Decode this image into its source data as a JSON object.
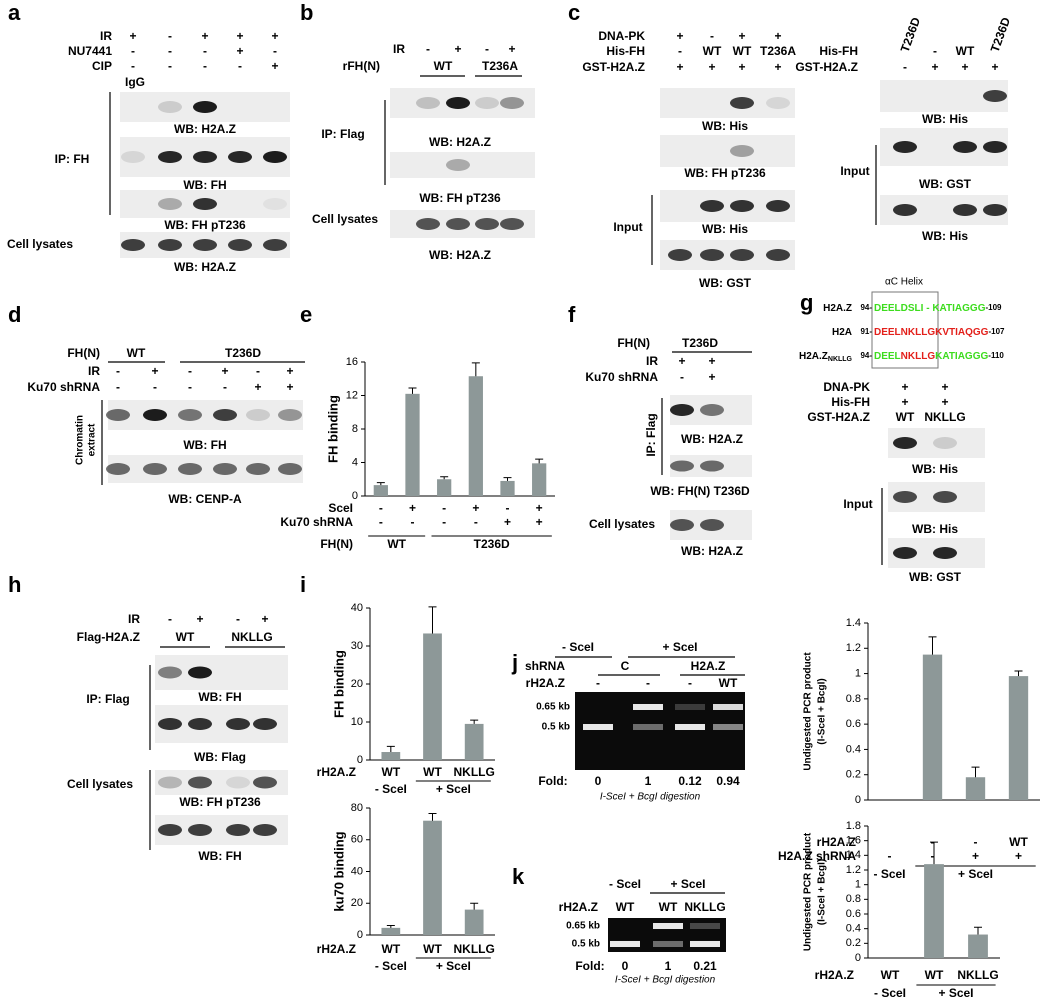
{
  "panels": {
    "a": {
      "letter": "a",
      "rows": [
        {
          "label": "IR",
          "marks": [
            "+",
            "-",
            "+",
            "+",
            "+"
          ]
        },
        {
          "label": "NU7441",
          "marks": [
            "-",
            "-",
            "-",
            "+",
            "-"
          ]
        },
        {
          "label": "CIP",
          "marks": [
            "-",
            "-",
            "-",
            "-",
            "+"
          ]
        }
      ],
      "lane_label": "IgG",
      "blots": [
        "WB: H2A.Z",
        "WB: FH",
        "WB: FH pT236",
        "WB: H2A.Z"
      ],
      "sections": [
        "IP: FH",
        "Cell lysates"
      ]
    },
    "b": {
      "letter": "b",
      "rows": [
        {
          "label": "IR",
          "marks": [
            "-",
            "+",
            "-",
            "+"
          ]
        },
        {
          "label": "rFH(N)",
          "marks": [
            "WT",
            "T236A"
          ]
        }
      ],
      "blots": [
        "WB: H2A.Z",
        "WB: FH pT236",
        "WB: H2A.Z"
      ],
      "sections": [
        "IP: Flag",
        "Cell lysates"
      ]
    },
    "c": {
      "letter": "c",
      "rows": [
        {
          "label": "DNA-PK",
          "marks": [
            "+",
            "-",
            "+",
            "+"
          ]
        },
        {
          "label": "His-FH",
          "marks": [
            "-",
            "WT",
            "WT",
            "T236A"
          ]
        },
        {
          "label": "GST-H2A.Z",
          "marks": [
            "+",
            "+",
            "+",
            "+"
          ]
        }
      ],
      "blots": [
        "WB: His",
        "WB: FH pT236",
        "WB: His",
        "WB: GST"
      ],
      "sections": [
        "Input"
      ],
      "right": {
        "rows": [
          {
            "label": "His-FH",
            "marks": [
              "T236D",
              "-",
              "WT",
              "T236D"
            ]
          },
          {
            "label": "GST-H2A.Z",
            "marks": [
              "-",
              "+",
              "+",
              "+"
            ]
          }
        ],
        "blots": [
          "WB: His",
          "WB: GST",
          "WB: His"
        ],
        "sections": [
          "Input"
        ]
      }
    },
    "d": {
      "letter": "d",
      "rows": [
        {
          "label": "FH(N)",
          "marks": [
            "WT",
            "T236D"
          ]
        },
        {
          "label": "IR",
          "marks": [
            "-",
            "+",
            "-",
            "+",
            "-",
            "+"
          ]
        },
        {
          "label": "Ku70 shRNA",
          "marks": [
            "-",
            "-",
            "-",
            "-",
            "+",
            "+"
          ]
        }
      ],
      "blots": [
        "WB: FH",
        "WB: CENP-A"
      ],
      "side_label": [
        "Chromatin",
        "extract"
      ]
    },
    "e": {
      "letter": "e"
    },
    "f": {
      "letter": "f",
      "rows": [
        {
          "label": "FH(N)",
          "marks": [
            "T236D"
          ]
        },
        {
          "label": "IR",
          "marks": [
            "+",
            "+"
          ]
        },
        {
          "label": "Ku70 shRNA",
          "marks": [
            "-",
            "+"
          ]
        }
      ],
      "blots": [
        "WB: H2A.Z",
        "WB: FH(N) T236D",
        "WB: H2A.Z"
      ],
      "sections": [
        "IP: Flag",
        "Cell lysates"
      ]
    },
    "g": {
      "letter": "g",
      "helix_label": "αC Helix",
      "sequences": [
        {
          "name": "H2A.Z",
          "start": "94-",
          "segments": [
            {
              "text": "DEELDSLI - KATIAGGG",
              "color": "#3ddc1e"
            }
          ],
          "end": "-109"
        },
        {
          "name": "H2A",
          "start": "91-",
          "segments": [
            {
              "text": "DEELNKLLG",
              "color": "#e3201b"
            },
            {
              "text": "KVTIAQGG",
              "color": "#e3201b"
            }
          ],
          "end": "-107"
        },
        {
          "name": "H2A.Z",
          "name_sub": "NKLLG",
          "start": "94-",
          "segments": [
            {
              "text": "DEEL",
              "color": "#3ddc1e"
            },
            {
              "text": "NKLLG",
              "color": "#e3201b"
            },
            {
              "text": "KATIAGGG",
              "color": "#3ddc1e"
            }
          ],
          "end": "-110"
        }
      ],
      "rows": [
        {
          "label": "DNA-PK",
          "marks": [
            "+",
            "+"
          ]
        },
        {
          "label": "His-FH",
          "marks": [
            "+",
            "+"
          ]
        },
        {
          "label": "GST-H2A.Z",
          "marks": [
            "WT",
            "NKLLG"
          ]
        }
      ],
      "blots": [
        "WB: His",
        "WB: His",
        "WB: GST"
      ],
      "sections": [
        "Input"
      ]
    },
    "h": {
      "letter": "h",
      "rows": [
        {
          "label": "IR",
          "marks": [
            "-",
            "+",
            "-",
            "+"
          ]
        },
        {
          "label": "Flag-H2A.Z",
          "marks": [
            "WT",
            "NKLLG"
          ]
        }
      ],
      "blots": [
        "WB: FH",
        "WB: Flag",
        "WB: FH pT236",
        "WB: FH"
      ],
      "sections": [
        "IP: Flag",
        "Cell lysates"
      ]
    },
    "i": {
      "letter": "i"
    },
    "j": {
      "letter": "j",
      "groups": [
        "- SceI",
        "+ SceI"
      ],
      "rows": [
        {
          "label": "shRNA",
          "marks": [
            "C",
            "H2A.Z"
          ]
        },
        {
          "label": "rH2A.Z",
          "marks": [
            "-",
            "-",
            "-",
            "WT"
          ]
        }
      ],
      "markers": [
        "0.65 kb",
        "0.5 kb"
      ],
      "fold_label": "Fold:",
      "folds": [
        0,
        1,
        0.12,
        0.94
      ],
      "caption": "I-SceI + BcgI  digestion"
    },
    "k": {
      "letter": "k",
      "groups": [
        "- SceI",
        "+ SceI"
      ],
      "rows": [
        {
          "label": "rH2A.Z",
          "marks": [
            "WT",
            "WT",
            "NKLLG"
          ]
        }
      ],
      "markers": [
        "0.65 kb",
        "0.5 kb"
      ],
      "fold_label": "Fold:",
      "folds": [
        0,
        1,
        0.21
      ],
      "caption": "I-SceI + BcgI digestion"
    }
  },
  "chart_data": [
    {
      "type": "bar",
      "y_label": "FH binding",
      "ylim": [
        0,
        16
      ],
      "yticks": [
        0,
        4,
        8,
        12,
        16
      ],
      "values": [
        1.3,
        12.2,
        2.0,
        14.3,
        1.8,
        3.9
      ],
      "errors": [
        0.3,
        0.7,
        0.3,
        1.6,
        0.4,
        0.5
      ],
      "color": "#8d9898",
      "conditions": [
        {
          "label": "SceI",
          "marks": [
            "-",
            "+",
            "-",
            "+",
            "-",
            "+"
          ]
        },
        {
          "label": "Ku70 shRNA",
          "marks": [
            "-",
            "-",
            "-",
            "-",
            "+",
            "+"
          ]
        }
      ],
      "groups_label": "FH(N)",
      "groups": [
        "WT",
        "T236D"
      ]
    },
    {
      "type": "bar",
      "y_label": "FH binding",
      "ylim": [
        0,
        40
      ],
      "yticks": [
        0,
        10,
        20,
        30,
        40
      ],
      "values": [
        2.1,
        33.3,
        9.5
      ],
      "errors": [
        1.5,
        7,
        1
      ],
      "color": "#8d9898",
      "categories": [
        "WT",
        "WT",
        "NKLLG"
      ],
      "category_label": "rH2A.Z",
      "groups": [
        "- SceI",
        "+ SceI"
      ]
    },
    {
      "type": "bar",
      "y_label": "ku70 binding",
      "ylim": [
        0,
        80
      ],
      "yticks": [
        0,
        20,
        40,
        60,
        80
      ],
      "values": [
        4.5,
        72,
        16
      ],
      "errors": [
        1.5,
        4.5,
        4
      ],
      "color": "#8d9898",
      "categories": [
        "WT",
        "WT",
        "NKLLG"
      ],
      "category_label": "rH2A.Z",
      "groups": [
        "- SceI",
        "+ SceI"
      ]
    },
    {
      "type": "bar",
      "y_label": [
        "Undigested PCR product",
        "(I-SceI + BcgI)"
      ],
      "ylim": [
        0,
        1.4
      ],
      "yticks": [
        0,
        0.2,
        0.4,
        0.6,
        0.8,
        1,
        1.2,
        1.4
      ],
      "values": [
        0,
        1.15,
        0.18,
        0.98
      ],
      "errors": [
        0,
        0.14,
        0.08,
        0.04
      ],
      "color": "#8d9898",
      "conditions": [
        {
          "label": "rH2A.Z",
          "marks": [
            null,
            "-",
            "-",
            "WT"
          ]
        },
        {
          "label": "H2A.Z shRNA",
          "marks": [
            "-",
            "-",
            "+",
            "+"
          ]
        }
      ],
      "groups": [
        "- SceI",
        "+ SceI"
      ]
    },
    {
      "type": "bar",
      "y_label": [
        "Undigested PCR product",
        "(I-SceI + BcgI)"
      ],
      "ylim": [
        0,
        1.8
      ],
      "yticks": [
        0,
        0.2,
        0.4,
        0.6,
        0.8,
        1,
        1.2,
        1.4,
        1.6,
        1.8
      ],
      "values": [
        0,
        1.28,
        0.32
      ],
      "errors": [
        0,
        0.3,
        0.1
      ],
      "color": "#8d9898",
      "categories": [
        "WT",
        "WT",
        "NKLLG"
      ],
      "category_label": "rH2A.Z",
      "groups": [
        "- SceI",
        "+ SceI"
      ]
    }
  ]
}
